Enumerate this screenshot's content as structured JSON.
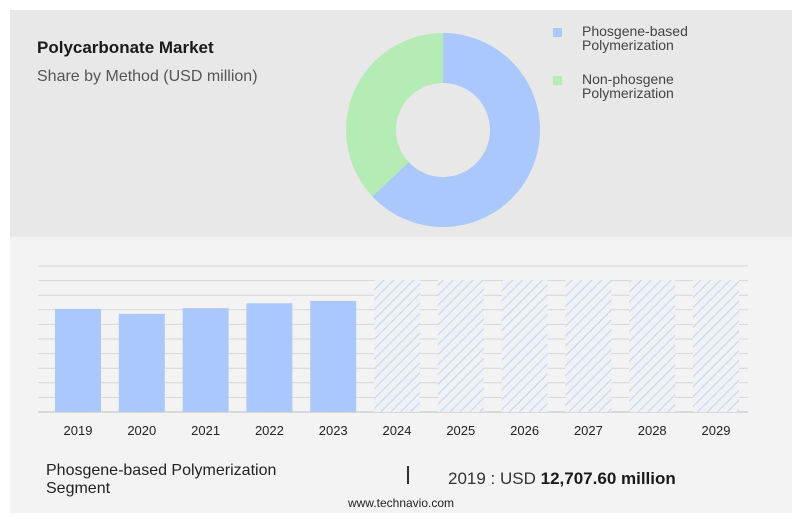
{
  "header": {
    "title": "Polycarbonate Market",
    "subtitle": "Share by Method (USD million)"
  },
  "donut_chart": {
    "type": "pie",
    "slices": [
      {
        "name": "Phosgene-based Polymerization",
        "value": 63,
        "color": "#aac8fc"
      },
      {
        "name": "Non-phosgene Polymerization",
        "value": 37,
        "color": "#b5ecb5"
      }
    ],
    "legend_position": "right"
  },
  "legend": {
    "items": [
      {
        "line1": "Phosgene-based",
        "line2": "Polymerization",
        "color": "#aac8fc"
      },
      {
        "line1": "Non-phosgene",
        "line2": "Polymerization",
        "color": "#b5ecb5"
      }
    ]
  },
  "chart_data": {
    "type": "bar",
    "categories": [
      "2019",
      "2020",
      "2021",
      "2022",
      "2023",
      "2024",
      "2025",
      "2026",
      "2027",
      "2028",
      "2029"
    ],
    "series": [
      {
        "values": [
          12707.6,
          12100,
          12800,
          13400,
          13700,
          null,
          null,
          null,
          null,
          null,
          null
        ],
        "color": "#aac8fc"
      }
    ],
    "forecast_categories": [
      "2024",
      "2025",
      "2026",
      "2027",
      "2028",
      "2029"
    ],
    "forecast_style": "hatched",
    "ylim": [
      0,
      18000
    ],
    "grid": true,
    "y_tick_labels_visible": false
  },
  "footer": {
    "segment_line1": "Phosgene-based Polymerization",
    "segment_line2": "Segment",
    "year": "2019",
    "currency": "USD",
    "amount": "12,707.60 million",
    "source": "www.technavio.com"
  }
}
